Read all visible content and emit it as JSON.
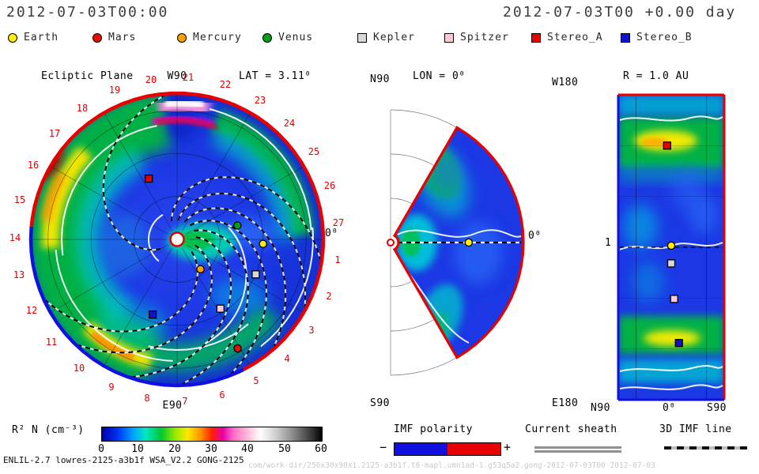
{
  "header": {
    "left_title": "2012-07-03T00:00",
    "right_title": "2012-07-03T00 +0.00 day"
  },
  "legend": {
    "items": [
      {
        "label": "Earth",
        "shape": "circle",
        "color": "#ffef00"
      },
      {
        "label": "Mars",
        "shape": "circle",
        "color": "#e81000"
      },
      {
        "label": "Mercury",
        "shape": "circle",
        "color": "#ffa000"
      },
      {
        "label": "Venus",
        "shape": "circle",
        "color": "#00a018"
      },
      {
        "label": "Kepler",
        "shape": "square",
        "color": "#d8d8d8"
      },
      {
        "label": "Spitzer",
        "shape": "square",
        "color": "#ffc8d4"
      },
      {
        "label": "Stereo_A",
        "shape": "square",
        "color": "#e80000"
      },
      {
        "label": "Stereo_B",
        "shape": "square",
        "color": "#1010d0"
      }
    ]
  },
  "panels": {
    "ecliptic": {
      "title": "Ecliptic Plane",
      "top": "W90",
      "bottom": "E90",
      "lat": "LAT = 3.11⁰",
      "zero": "0⁰",
      "carrington_numbers": [
        1,
        2,
        3,
        4,
        5,
        6,
        7,
        8,
        9,
        10,
        11,
        12,
        13,
        14,
        15,
        16,
        17,
        18,
        19,
        20,
        21,
        22,
        23,
        24,
        25,
        26,
        27
      ]
    },
    "meridional": {
      "north": "N90",
      "south": "S90",
      "title": "LON = 0⁰",
      "zero": "0⁰"
    },
    "latlon": {
      "title": "R = 1.0 AU",
      "west": "W180",
      "east": "E180",
      "n": "N90",
      "zero": "0⁰",
      "s": "S90",
      "tick": "1"
    }
  },
  "colorbar": {
    "label": "R² N (cm⁻³)",
    "ticks": [
      "0",
      "10",
      "20",
      "30",
      "40",
      "50",
      "60"
    ]
  },
  "bottom_legend": {
    "imf": {
      "label": "IMF polarity",
      "minus": "−",
      "plus": "+",
      "neg_color": "#1010e0",
      "pos_color": "#e80000"
    },
    "sheath": {
      "label": "Current sheath"
    },
    "imfline": {
      "label": "3D IMF line"
    }
  },
  "footer": {
    "left": "ENLIL-2.7 lowres-2125-a3b1f WSA_V2.2 GONG-2125",
    "right": "com/work-dir/256x30x90x1.2125-a3b1f.t6-mapl.umn1ad-1.g53q5a2.gong-2012-07-03T00  2012-07-03"
  },
  "chart_data": [
    {
      "panel": "ecliptic-plane",
      "type": "heatmap",
      "projection": "polar",
      "quantity": "R² N (cm⁻³)",
      "scale_range": [
        0,
        60
      ],
      "r_range_au": [
        0.1,
        1.7
      ],
      "slice_lat_deg": 3.11,
      "boundary_imf_polarity": {
        "positive_arc_deg": [
          -63,
          175
        ],
        "negative_arc_deg": [
          175,
          297
        ]
      },
      "objects": [
        {
          "name": "Earth",
          "lon_deg": -3,
          "r_au": 1.0
        },
        {
          "name": "Venus",
          "lon_deg": 13,
          "r_au": 0.72
        },
        {
          "name": "Mercury",
          "lon_deg": -52,
          "r_au": 0.44
        },
        {
          "name": "Mars",
          "lon_deg": -61,
          "r_au": 1.45
        },
        {
          "name": "Kepler",
          "lon_deg": -24,
          "r_au": 1.0
        },
        {
          "name": "Spitzer",
          "lon_deg": -58,
          "r_au": 0.95
        },
        {
          "name": "Stereo_A",
          "lon_deg": 115,
          "r_au": 0.78
        },
        {
          "name": "Stereo_B",
          "lon_deg": -108,
          "r_au": 0.92
        }
      ]
    },
    {
      "panel": "meridional-plane",
      "type": "heatmap",
      "projection": "polar",
      "quantity": "R² N (cm⁻³)",
      "scale_range": [
        0,
        60
      ],
      "slice_lon_deg": 0,
      "lat_range_deg": [
        -60,
        60
      ],
      "r_range_au": [
        0.1,
        1.7
      ],
      "objects": [
        {
          "name": "Earth",
          "lat_deg": 0,
          "r_au": 1.0
        }
      ]
    },
    {
      "panel": "sphere-map",
      "type": "heatmap",
      "projection": "lat-lon",
      "quantity": "R² N (cm⁻³)",
      "scale_range": [
        0,
        60
      ],
      "r_au": 1.0,
      "lat_axis": [
        "N90",
        "0",
        "S90"
      ],
      "lon_axis": [
        "W180",
        "E180"
      ],
      "objects": [
        {
          "name": "Stereo_A",
          "lat_deg": 7,
          "lon_deg": 120
        },
        {
          "name": "Earth",
          "lat_deg": 0,
          "lon_deg": 2
        },
        {
          "name": "Kepler",
          "lat_deg": 0,
          "lon_deg": -19
        },
        {
          "name": "Spitzer",
          "lat_deg": -5,
          "lon_deg": -61
        },
        {
          "name": "Stereo_B",
          "lat_deg": -13,
          "lon_deg": -113
        }
      ]
    }
  ]
}
